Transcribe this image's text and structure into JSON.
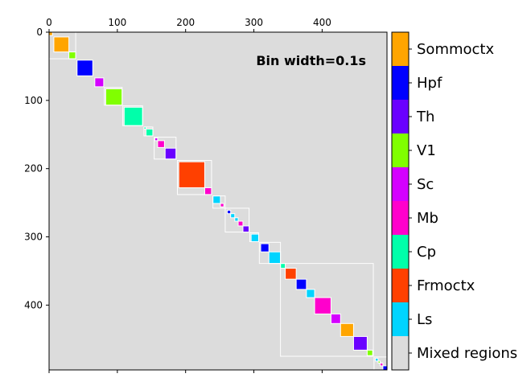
{
  "chart_data": {
    "type": "heatmap",
    "title": "",
    "xlabel": "",
    "ylabel": "",
    "annotation": "Bin width=0.1s",
    "xlim": [
      0,
      495
    ],
    "ylim": [
      495,
      0
    ],
    "x_ticks": [
      0,
      100,
      200,
      300,
      400
    ],
    "y_ticks": [
      0,
      100,
      200,
      300,
      400
    ],
    "background_category": "Mixed regions",
    "legend": [
      {
        "label": "Sommoctx",
        "color": "#ffa500"
      },
      {
        "label": "Hpf",
        "color": "#0000ff"
      },
      {
        "label": "Th",
        "color": "#6a00ff"
      },
      {
        "label": "V1",
        "color": "#80ff00"
      },
      {
        "label": "Sc",
        "color": "#d400ff"
      },
      {
        "label": "Mb",
        "color": "#ff00cc"
      },
      {
        "label": "Cp",
        "color": "#00ffaa"
      },
      {
        "label": "Frmoctx",
        "color": "#ff4000"
      },
      {
        "label": "Ls",
        "color": "#00d4ff"
      },
      {
        "label": "Mixed regions",
        "color": "#dcdcdc"
      }
    ],
    "colors": {
      "background": "#dcdcdc",
      "group_outline": "#ffffff"
    },
    "clusters": [
      {
        "start": 0,
        "end": 5,
        "region": "Sommoctx"
      },
      {
        "start": 7,
        "end": 29,
        "region": "Sommoctx"
      },
      {
        "start": 29,
        "end": 39,
        "region": "V1"
      },
      {
        "start": 41,
        "end": 64,
        "region": "Hpf"
      },
      {
        "start": 67,
        "end": 80,
        "region": "Sc"
      },
      {
        "start": 83,
        "end": 107,
        "region": "V1"
      },
      {
        "start": 110,
        "end": 137,
        "region": "Cp"
      },
      {
        "start": 139,
        "end": 142,
        "region": "Cp"
      },
      {
        "start": 142,
        "end": 152,
        "region": "Cp"
      },
      {
        "start": 155,
        "end": 159,
        "region": "Sc"
      },
      {
        "start": 159,
        "end": 169,
        "region": "Mb"
      },
      {
        "start": 170,
        "end": 186,
        "region": "Th"
      },
      {
        "start": 190,
        "end": 228,
        "region": "Frmoctx"
      },
      {
        "start": 228,
        "end": 238,
        "region": "Mb"
      },
      {
        "start": 240,
        "end": 251,
        "region": "Ls"
      },
      {
        "start": 251,
        "end": 256,
        "region": "Mb"
      },
      {
        "start": 261,
        "end": 266,
        "region": "Hpf"
      },
      {
        "start": 266,
        "end": 272,
        "region": "Ls"
      },
      {
        "start": 272,
        "end": 277,
        "region": "Ls"
      },
      {
        "start": 277,
        "end": 284,
        "region": "Mb"
      },
      {
        "start": 284,
        "end": 293,
        "region": "Th"
      },
      {
        "start": 296,
        "end": 307,
        "region": "Ls"
      },
      {
        "start": 310,
        "end": 322,
        "region": "Hpf"
      },
      {
        "start": 322,
        "end": 339,
        "region": "Ls"
      },
      {
        "start": 339,
        "end": 346,
        "region": "Cp"
      },
      {
        "start": 346,
        "end": 362,
        "region": "Frmoctx"
      },
      {
        "start": 362,
        "end": 377,
        "region": "Hpf"
      },
      {
        "start": 377,
        "end": 389,
        "region": "Ls"
      },
      {
        "start": 389,
        "end": 413,
        "region": "Mb"
      },
      {
        "start": 413,
        "end": 427,
        "region": "Sc"
      },
      {
        "start": 427,
        "end": 446,
        "region": "Sommoctx"
      },
      {
        "start": 446,
        "end": 466,
        "region": "Th"
      },
      {
        "start": 466,
        "end": 474,
        "region": "V1"
      },
      {
        "start": 478,
        "end": 482,
        "region": "Ls"
      },
      {
        "start": 482,
        "end": 485,
        "region": "V1"
      },
      {
        "start": 485,
        "end": 489,
        "region": "Mb"
      },
      {
        "start": 489,
        "end": 495,
        "region": "Hpf"
      }
    ],
    "groups": [
      {
        "start": 0,
        "end": 39
      },
      {
        "start": 81,
        "end": 107
      },
      {
        "start": 108,
        "end": 137
      },
      {
        "start": 139,
        "end": 152
      },
      {
        "start": 154,
        "end": 186
      },
      {
        "start": 188,
        "end": 238
      },
      {
        "start": 240,
        "end": 258
      },
      {
        "start": 258,
        "end": 293
      },
      {
        "start": 294,
        "end": 307
      },
      {
        "start": 308,
        "end": 339
      },
      {
        "start": 339,
        "end": 475
      },
      {
        "start": 476,
        "end": 495
      }
    ]
  }
}
